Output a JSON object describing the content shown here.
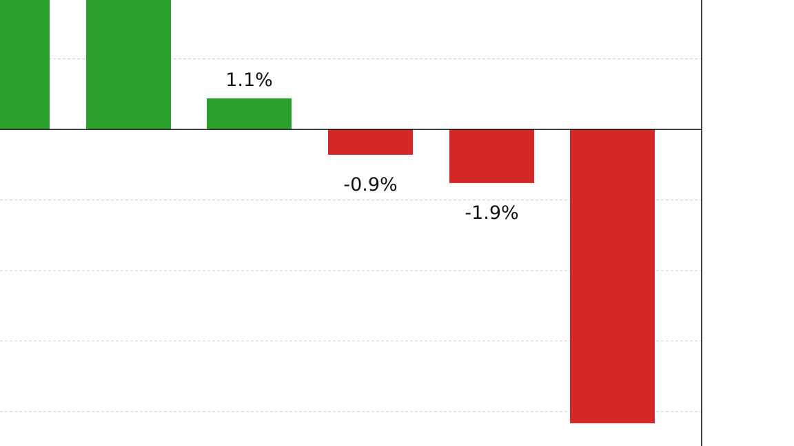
{
  "chart_data": {
    "type": "bar",
    "values": [
      null,
      null,
      1.1,
      -0.9,
      -1.9,
      -10.3
    ],
    "data_labels": [
      "",
      "",
      "1.1%",
      "-0.9%",
      "-1.9%",
      ""
    ],
    "colors": {
      "positive": "#2ca02c",
      "negative": "#d62728",
      "zero_line": "#000000",
      "grid": "#cccccc",
      "right_spine": "#000000"
    },
    "grid": true,
    "grid_values": [
      2.5,
      -2.5,
      -5,
      -7.5,
      -10
    ],
    "zero_line": true
  }
}
